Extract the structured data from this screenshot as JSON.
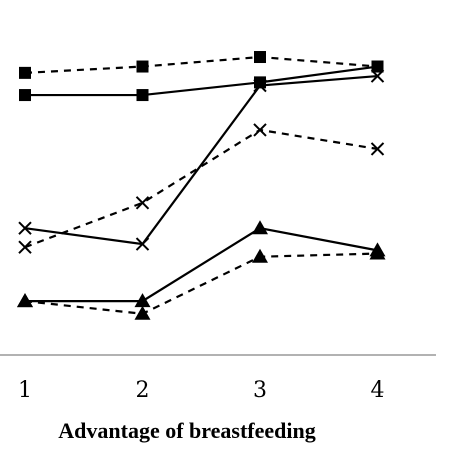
{
  "chart_data": {
    "type": "line",
    "title": "",
    "xlabel": "Advantage of breastfeeding",
    "ylabel": "",
    "x": [
      1,
      2,
      3,
      4
    ],
    "xticks": [
      "1",
      "2",
      "3",
      "4"
    ],
    "ylim": [
      0,
      100
    ],
    "grid": false,
    "legend": "none",
    "series": [
      {
        "marker": "square",
        "dash": "dashed",
        "values": [
          89,
          91,
          94,
          91
        ]
      },
      {
        "marker": "square",
        "dash": "solid",
        "values": [
          82,
          82,
          86,
          91
        ]
      },
      {
        "marker": "x",
        "dash": "solid",
        "values": [
          40,
          35,
          85,
          88
        ]
      },
      {
        "marker": "x",
        "dash": "dashed",
        "values": [
          34,
          48,
          71,
          65
        ]
      },
      {
        "marker": "triangle",
        "dash": "solid",
        "values": [
          17,
          17,
          40,
          33
        ]
      },
      {
        "marker": "triangle",
        "dash": "dashed",
        "values": [
          17,
          13,
          31,
          32
        ]
      }
    ],
    "colors": {
      "line": "#000000",
      "axis": "#999999"
    }
  }
}
